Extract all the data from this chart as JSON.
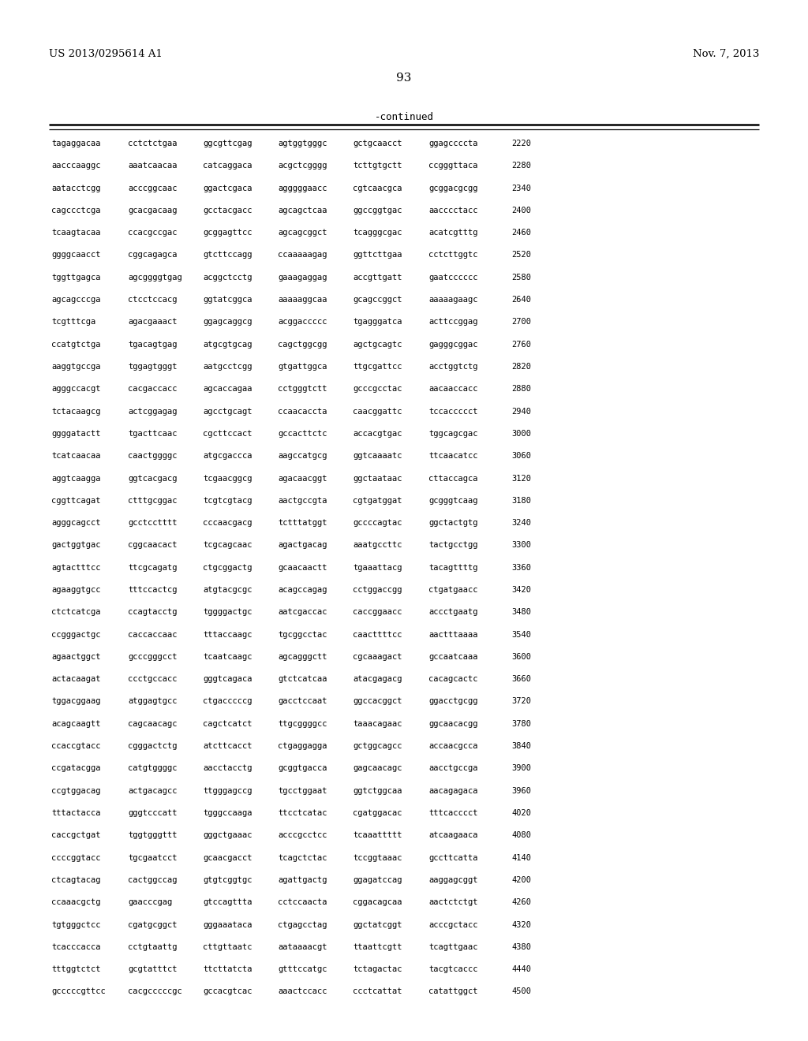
{
  "header_left": "US 2013/0295614 A1",
  "header_right": "Nov. 7, 2013",
  "page_number": "93",
  "continued_label": "-continued",
  "background_color": "#ffffff",
  "text_color": "#000000",
  "sequences": [
    [
      "tagaggacaa",
      "cctctctgaa",
      "ggcgttcgag",
      "agtggtgggc",
      "gctgcaacct",
      "ggagccccta",
      "2220"
    ],
    [
      "aacccaaggc",
      "aaatcaacaa",
      "catcaggaca",
      "acgctcgggg",
      "tcttgtgctt",
      "ccgggttaca",
      "2280"
    ],
    [
      "aatacctcgg",
      "acccggcaac",
      "ggactcgaca",
      "agggggaacc",
      "cgtcaacgca",
      "gcggacgcgg",
      "2340"
    ],
    [
      "cagccctcga",
      "gcacgacaag",
      "gcctacgacc",
      "agcagctcaa",
      "ggccggtgac",
      "aacccctacc",
      "2400"
    ],
    [
      "tcaagtacaa",
      "ccacgccgac",
      "gcggagttcc",
      "agcagcggct",
      "tcagggcgac",
      "acatcgtttg",
      "2460"
    ],
    [
      "ggggcaacct",
      "cggcagagca",
      "gtcttccagg",
      "ccaaaaagag",
      "ggttcttgaa",
      "cctcttggtc",
      "2520"
    ],
    [
      "tggttgagca",
      "agcggggtgag",
      "acggctcctg",
      "gaaagaggag",
      "accgttgatt",
      "gaatcccccc",
      "2580"
    ],
    [
      "agcagcccga",
      "ctcctccacg",
      "ggtatcggca",
      "aaaaaggcaa",
      "gcagccggct",
      "aaaaagaagc",
      "2640"
    ],
    [
      "tcgtttcga",
      "agacgaaact",
      "ggagcaggcg",
      "acggaccccc",
      "tgagggatca",
      "acttccggag",
      "2700"
    ],
    [
      "ccatgtctga",
      "tgacagtgag",
      "atgcgtgcag",
      "cagctggcgg",
      "agctgcagtc",
      "gagggcggac",
      "2760"
    ],
    [
      "aaggtgccga",
      "tggagtgggt",
      "aatgcctcgg",
      "gtgattggca",
      "ttgcgattcc",
      "acctggtctg",
      "2820"
    ],
    [
      "agggccacgt",
      "cacgaccacc",
      "agcaccagaa",
      "cctgggtctt",
      "gcccgcctac",
      "aacaaccacc",
      "2880"
    ],
    [
      "tctacaagcg",
      "actcggagag",
      "agcctgcagt",
      "ccaacaccta",
      "caacggattc",
      "tccaccccct",
      "2940"
    ],
    [
      "ggggatactt",
      "tgacttcaac",
      "cgcttccact",
      "gccacttctc",
      "accacgtgac",
      "tggcagcgac",
      "3000"
    ],
    [
      "tcatcaacaa",
      "caactggggc",
      "atgcgaccca",
      "aagccatgcg",
      "ggtcaaaatc",
      "ttcaacatcc",
      "3060"
    ],
    [
      "aggtcaagga",
      "ggtcacgacg",
      "tcgaacggcg",
      "agacaacggt",
      "ggctaataac",
      "cttaccagca",
      "3120"
    ],
    [
      "cggttcagat",
      "ctttgcggac",
      "tcgtcgtacg",
      "aactgccgta",
      "cgtgatggat",
      "gcgggtcaag",
      "3180"
    ],
    [
      "agggcagcct",
      "gcctcctttt",
      "cccaacgacg",
      "tctttatggt",
      "gccccagtac",
      "ggctactgtg",
      "3240"
    ],
    [
      "gactggtgac",
      "cggcaacact",
      "tcgcagcaac",
      "agactgacag",
      "aaatgccttc",
      "tactgcctgg",
      "3300"
    ],
    [
      "agtactttcc",
      "ttcgcagatg",
      "ctgcggactg",
      "gcaacaactt",
      "tgaaattacg",
      "tacagttttg",
      "3360"
    ],
    [
      "agaaggtgcc",
      "tttccactcg",
      "atgtacgcgc",
      "acagccagag",
      "cctggaccgg",
      "ctgatgaacc",
      "3420"
    ],
    [
      "ctctcatcga",
      "ccagtacctg",
      "tggggactgc",
      "aatcgaccac",
      "caccggaacc",
      "accctgaatg",
      "3480"
    ],
    [
      "ccgggactgc",
      "caccaccaac",
      "tttaccaagc",
      "tgcggcctac",
      "caacttttcc",
      "aactttaaaa",
      "3540"
    ],
    [
      "agaactggct",
      "gcccgggcct",
      "tcaatcaagc",
      "agcagggctt",
      "cgcaaagact",
      "gccaatcaaa",
      "3600"
    ],
    [
      "actacaagat",
      "ccctgccacc",
      "gggtcagaca",
      "gtctcatcaa",
      "atacgagacg",
      "cacagcactc",
      "3660"
    ],
    [
      "tggacggaag",
      "atggagtgcc",
      "ctgacccccg",
      "gacctccaat",
      "ggccacggct",
      "ggacctgcgg",
      "3720"
    ],
    [
      "acagcaagtt",
      "cagcaacagc",
      "cagctcatct",
      "ttgcggggcc",
      "taaacagaac",
      "ggcaacacgg",
      "3780"
    ],
    [
      "ccaccgtacc",
      "cgggactctg",
      "atcttcacct",
      "ctgaggagga",
      "gctggcagcc",
      "accaacgcca",
      "3840"
    ],
    [
      "ccgatacgga",
      "catgtggggc",
      "aacctacctg",
      "gcggtgacca",
      "gagcaacagc",
      "aacctgccga",
      "3900"
    ],
    [
      "ccgtggacag",
      "actgacagcc",
      "ttgggagccg",
      "tgcctggaat",
      "ggtctggcaa",
      "aacagagaca",
      "3960"
    ],
    [
      "tttactacca",
      "gggtcccatt",
      "tgggccaaga",
      "ttcctcatac",
      "cgatggacac",
      "tttcacccct",
      "4020"
    ],
    [
      "caccgctgat",
      "tggtgggttt",
      "gggctgaaac",
      "acccgcctcc",
      "tcaaattttt",
      "atcaagaaca",
      "4080"
    ],
    [
      "ccccggtacc",
      "tgcgaatcct",
      "gcaacgacct",
      "tcagctctac",
      "tccggtaaac",
      "gccttcatta",
      "4140"
    ],
    [
      "ctcagtacag",
      "cactggccag",
      "gtgtcggtgc",
      "agattgactg",
      "ggagatccag",
      "aaggagcggt",
      "4200"
    ],
    [
      "ccaaacgctg",
      "gaacccgag",
      "gtccagttta",
      "cctccaacta",
      "cggacagcaa",
      "aactctctgt",
      "4260"
    ],
    [
      "tgtgggctcc",
      "cgatgcggct",
      "gggaaataca",
      "ctgagcctag",
      "ggctatcggt",
      "acccgctacc",
      "4320"
    ],
    [
      "tcacccacca",
      "cctgtaattg",
      "cttgttaatc",
      "aataaaacgt",
      "ttaattcgtt",
      "tcagttgaac",
      "4380"
    ],
    [
      "tttggtctct",
      "gcgtatttct",
      "ttcttatcta",
      "gtttccatgc",
      "tctagactac",
      "tacgtcaccc",
      "4440"
    ],
    [
      "gcccccgttcc",
      "cacgcccccgc",
      "gccacgtcac",
      "aaactccacc",
      "ccctcattat",
      "catattggct",
      "4500"
    ]
  ],
  "header_fontsize": 9.5,
  "page_num_fontsize": 11,
  "seq_fontsize": 7.5,
  "continued_fontsize": 9
}
